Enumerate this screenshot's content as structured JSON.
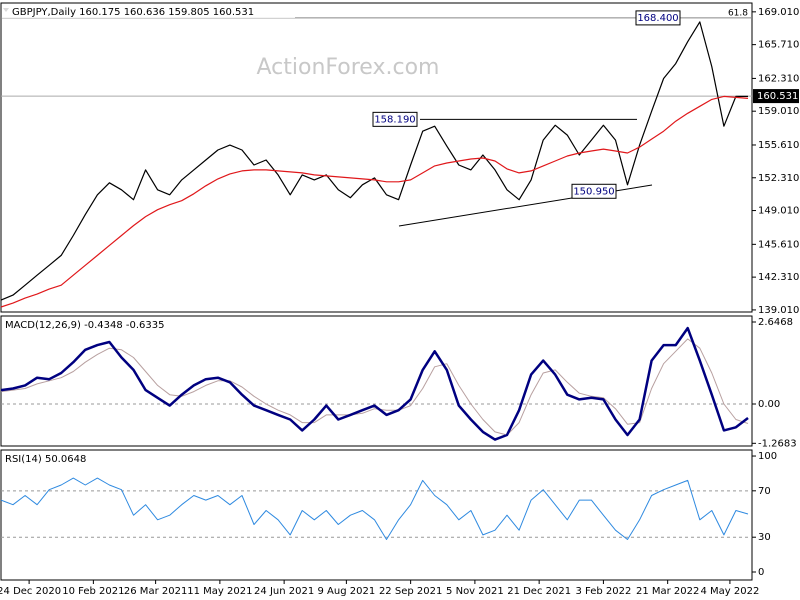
{
  "chart_data": [
    {
      "type": "line",
      "title": "GBPJPY,Daily  160.175 160.636 159.805 160.531",
      "watermark": "ActionForex.com",
      "xlim": [
        0,
        374
      ],
      "ylim": [
        138.8,
        169.9
      ],
      "x": [
        0,
        6,
        12,
        18,
        24,
        30,
        36,
        42,
        48,
        54,
        60,
        66,
        72,
        78,
        84,
        90,
        96,
        102,
        108,
        114,
        120,
        126,
        132,
        138,
        144,
        150,
        156,
        162,
        168,
        174,
        180,
        186,
        192,
        198,
        204,
        210,
        216,
        222,
        228,
        234,
        240,
        246,
        252,
        258,
        264,
        270,
        276,
        282,
        288,
        294,
        300,
        306,
        312,
        318,
        324,
        330,
        336,
        342,
        348,
        354,
        360,
        366,
        372
      ],
      "yticks": [
        {
          "value": 169.01,
          "label": "169.010"
        },
        {
          "value": 165.71,
          "label": "165.710"
        },
        {
          "value": 162.31,
          "label": "162.310"
        },
        {
          "value": 159.01,
          "label": "159.010"
        },
        {
          "value": 155.61,
          "label": "155.610"
        },
        {
          "value": 152.31,
          "label": "152.310"
        },
        {
          "value": 149.01,
          "label": "149.010"
        },
        {
          "value": 145.61,
          "label": "145.610"
        },
        {
          "value": 142.31,
          "label": "142.310"
        },
        {
          "value": 139.01,
          "label": "139.010"
        }
      ],
      "series": [
        {
          "name": "GBPJPY",
          "color": "#000000",
          "values": [
            140.0,
            140.5,
            141.5,
            142.5,
            143.5,
            144.5,
            146.5,
            148.6,
            150.6,
            151.8,
            151.1,
            150.1,
            153.1,
            151.1,
            150.6,
            152.1,
            153.1,
            154.1,
            155.1,
            155.6,
            155.1,
            153.6,
            154.1,
            152.6,
            150.6,
            152.6,
            152.1,
            152.6,
            151.1,
            150.3,
            151.6,
            152.3,
            150.6,
            150.1,
            153.6,
            157.0,
            157.5,
            155.5,
            153.6,
            153.1,
            154.6,
            153.1,
            151.1,
            150.1,
            152.1,
            156.1,
            157.6,
            156.6,
            154.6,
            156.1,
            157.6,
            156.1,
            151.6,
            155.6,
            159.0,
            162.3,
            163.8,
            166.0,
            168.0,
            163.5,
            157.5,
            160.5,
            160.5
          ]
        },
        {
          "name": "MA",
          "color": "#e0181b",
          "values": [
            139.3,
            139.7,
            140.2,
            140.6,
            141.1,
            141.5,
            142.5,
            143.5,
            144.5,
            145.5,
            146.5,
            147.5,
            148.4,
            149.1,
            149.6,
            150.0,
            150.7,
            151.5,
            152.2,
            152.7,
            153.0,
            153.1,
            153.1,
            153.0,
            152.9,
            152.8,
            152.6,
            152.5,
            152.4,
            152.3,
            152.2,
            152.1,
            151.9,
            151.9,
            152.1,
            152.8,
            153.5,
            153.8,
            154.0,
            154.2,
            154.3,
            154.0,
            153.2,
            152.8,
            153.0,
            153.5,
            154.0,
            154.5,
            154.8,
            155.0,
            155.2,
            155.0,
            154.8,
            155.4,
            156.2,
            157.0,
            158.0,
            158.8,
            159.5,
            160.2,
            160.5,
            160.4,
            160.3
          ]
        }
      ],
      "last_price": {
        "value": 160.531,
        "label": "160.531"
      },
      "levels": [
        {
          "value": 168.4,
          "label": "168.400"
        },
        {
          "value": 158.19,
          "label": "158.190"
        },
        {
          "value": 150.95,
          "label": "150.950"
        }
      ],
      "fib_label": "61.8"
    },
    {
      "type": "line",
      "title": "MACD(12,26,9) -0.4348 -0.6335",
      "xlim": [
        0,
        374
      ],
      "ylim": [
        -1.355,
        2.84
      ],
      "x": [
        0,
        6,
        12,
        18,
        24,
        30,
        36,
        42,
        48,
        54,
        60,
        66,
        72,
        78,
        84,
        90,
        96,
        102,
        108,
        114,
        120,
        126,
        132,
        138,
        144,
        150,
        156,
        162,
        168,
        174,
        180,
        186,
        192,
        198,
        204,
        210,
        216,
        222,
        228,
        234,
        240,
        246,
        252,
        258,
        264,
        270,
        276,
        282,
        288,
        294,
        300,
        306,
        312,
        318,
        324,
        330,
        336,
        342,
        348,
        354,
        360,
        366,
        372
      ],
      "yticks": [
        2.6468,
        {
          "value": 0,
          "label": "0.00"
        },
        -1.2683
      ],
      "levels": [
        0
      ],
      "series": [
        {
          "name": "Signal",
          "color": "#b8a0a0",
          "width": 1,
          "values": [
            0.4,
            0.45,
            0.5,
            0.65,
            0.75,
            0.85,
            1.05,
            1.35,
            1.6,
            1.8,
            1.75,
            1.5,
            1.05,
            0.6,
            0.3,
            0.25,
            0.4,
            0.6,
            0.75,
            0.75,
            0.55,
            0.25,
            0.0,
            -0.2,
            -0.35,
            -0.6,
            -0.6,
            -0.35,
            -0.35,
            -0.35,
            -0.3,
            -0.15,
            -0.2,
            -0.2,
            -0.05,
            0.5,
            1.2,
            1.3,
            0.6,
            0.0,
            -0.5,
            -0.9,
            -1.0,
            -0.6,
            0.3,
            1.0,
            1.1,
            0.7,
            0.35,
            0.25,
            0.2,
            -0.15,
            -0.65,
            -0.6,
            0.5,
            1.3,
            1.7,
            2.1,
            1.8,
            1.0,
            0.0,
            -0.5,
            -0.63
          ]
        },
        {
          "name": "MACD",
          "color": "#000080",
          "width": 2.5,
          "values": [
            0.45,
            0.5,
            0.6,
            0.85,
            0.8,
            1.0,
            1.35,
            1.75,
            1.9,
            2.0,
            1.5,
            1.1,
            0.45,
            0.2,
            -0.05,
            0.3,
            0.6,
            0.8,
            0.85,
            0.7,
            0.3,
            -0.05,
            -0.2,
            -0.35,
            -0.5,
            -0.85,
            -0.5,
            -0.05,
            -0.5,
            -0.35,
            -0.2,
            -0.05,
            -0.35,
            -0.2,
            0.15,
            1.1,
            1.7,
            1.1,
            -0.05,
            -0.5,
            -0.9,
            -1.15,
            -1.0,
            -0.2,
            0.95,
            1.4,
            0.95,
            0.3,
            0.15,
            0.2,
            0.15,
            -0.5,
            -1.0,
            -0.5,
            1.4,
            1.9,
            1.9,
            2.45,
            1.4,
            0.3,
            -0.85,
            -0.75,
            -0.45
          ]
        }
      ]
    },
    {
      "type": "line",
      "title": "RSI(14) 50.0648",
      "xlim": [
        0,
        374
      ],
      "ylim": [
        -6.9,
        105.2
      ],
      "x": [
        0,
        6,
        12,
        18,
        24,
        30,
        36,
        42,
        48,
        54,
        60,
        66,
        72,
        78,
        84,
        90,
        96,
        102,
        108,
        114,
        120,
        126,
        132,
        138,
        144,
        150,
        156,
        162,
        168,
        174,
        180,
        186,
        192,
        198,
        204,
        210,
        216,
        222,
        228,
        234,
        240,
        246,
        252,
        258,
        264,
        270,
        276,
        282,
        288,
        294,
        300,
        306,
        312,
        318,
        324,
        330,
        336,
        342,
        348,
        354,
        360,
        366,
        372
      ],
      "yticks": [
        100,
        70,
        30,
        0
      ],
      "levels": [
        70,
        30
      ],
      "series": [
        {
          "name": "RSI",
          "color": "#2f8ae0",
          "width": 1,
          "values": [
            62,
            58,
            66,
            58,
            71,
            75,
            81,
            75,
            81,
            75,
            71,
            49,
            58,
            45,
            49,
            58,
            66,
            62,
            66,
            58,
            66,
            41,
            53,
            45,
            32,
            53,
            45,
            53,
            41,
            49,
            53,
            45,
            28,
            45,
            58,
            79,
            66,
            58,
            45,
            53,
            32,
            36,
            49,
            36,
            62,
            71,
            58,
            45,
            62,
            62,
            49,
            36,
            28,
            45,
            66,
            71,
            75,
            79,
            45,
            53,
            32,
            53,
            50
          ]
        }
      ],
      "xticks": [
        {
          "value": 14,
          "label": "24 Dec 2020"
        },
        {
          "value": 46,
          "label": "10 Feb 2021"
        },
        {
          "value": 77,
          "label": "26 Mar 2021"
        },
        {
          "value": 109,
          "label": "11 May 2021"
        },
        {
          "value": 141,
          "label": "24 Jun 2021"
        },
        {
          "value": 172,
          "label": "9 Aug 2021"
        },
        {
          "value": 204,
          "label": "22 Sep 2021"
        },
        {
          "value": 236,
          "label": "5 Nov 2021"
        },
        {
          "value": 268,
          "label": "21 Dec 2021"
        },
        {
          "value": 300,
          "label": "3 Feb 2022"
        },
        {
          "value": 332,
          "label": "21 Mar 2022"
        },
        {
          "value": 363,
          "label": "4 May 2022"
        }
      ]
    }
  ]
}
